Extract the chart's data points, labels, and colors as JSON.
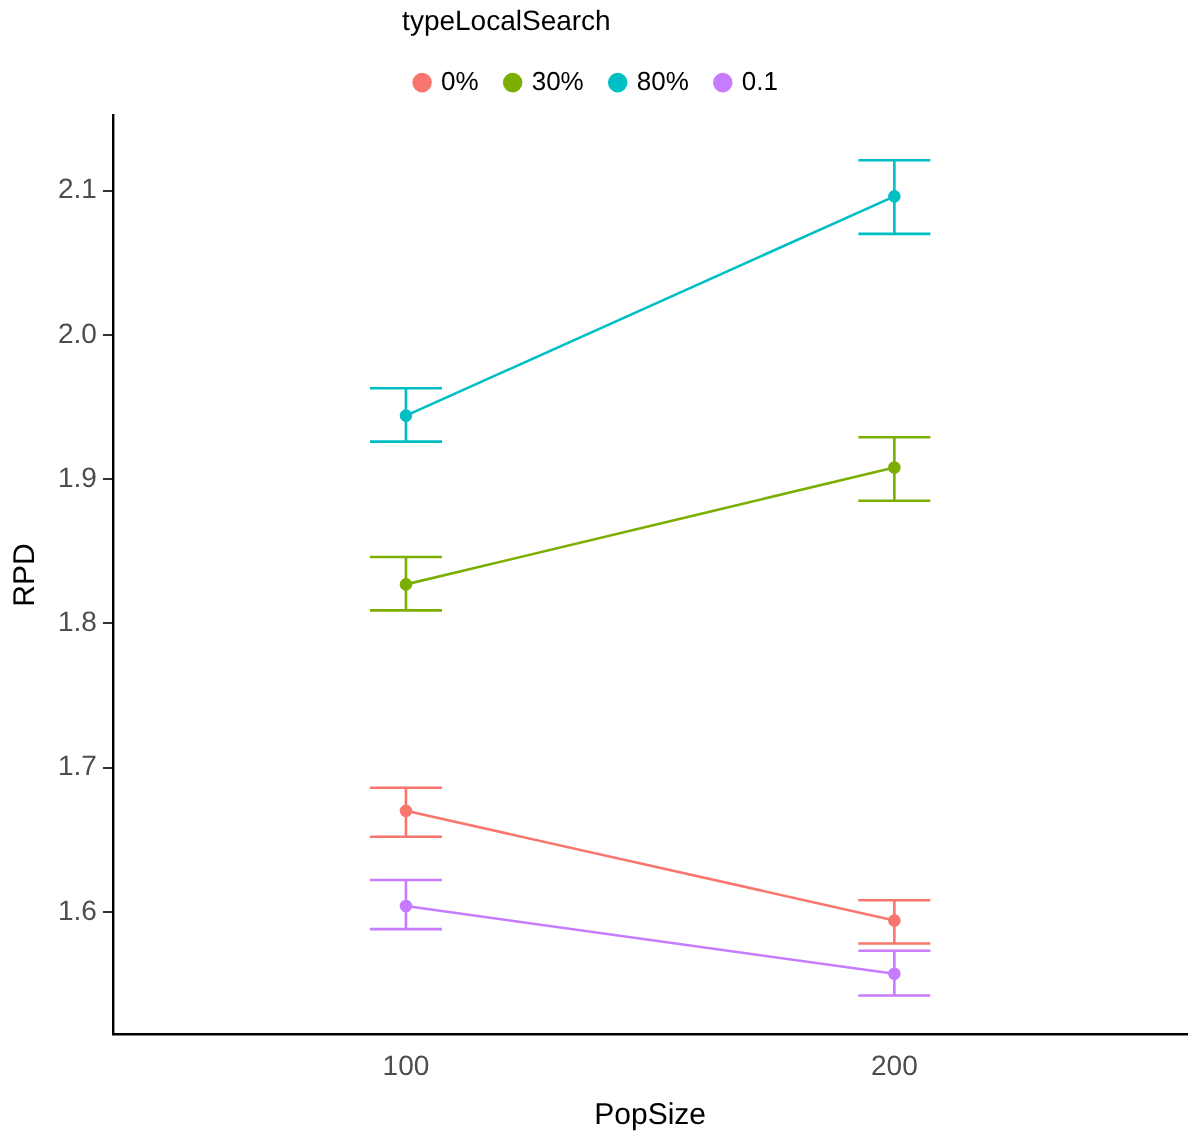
{
  "chart_data": {
    "type": "line",
    "xlabel": "PopSize",
    "ylabel": "RPD",
    "legend_title": "typeLocalSearch",
    "categories": [
      "100",
      "200"
    ],
    "series": [
      {
        "name": "0%",
        "color": "#f8766d",
        "values": [
          1.67,
          1.594
        ],
        "errors": [
          [
            1.652,
            1.686
          ],
          [
            1.578,
            1.608
          ]
        ]
      },
      {
        "name": "30%",
        "color": "#7cae00",
        "values": [
          1.827,
          1.908
        ],
        "errors": [
          [
            1.809,
            1.846
          ],
          [
            1.885,
            1.929
          ]
        ]
      },
      {
        "name": "80%",
        "color": "#00bfc4",
        "values": [
          1.944,
          2.096
        ],
        "errors": [
          [
            1.926,
            1.963
          ],
          [
            2.07,
            2.121
          ]
        ]
      },
      {
        "name": "0.1",
        "color": "#c77cff",
        "values": [
          1.604,
          1.557
        ],
        "errors": [
          [
            1.588,
            1.622
          ],
          [
            1.542,
            1.573
          ]
        ]
      }
    ],
    "ylim": [
      1.515,
      2.152
    ],
    "yticks": [
      1.6,
      1.7,
      1.8,
      1.9,
      {
        "value": 2,
        "label": "2.0"
      },
      2.1
    ],
    "legend": "top",
    "marker": "circle",
    "line_style": "solid",
    "grid": false
  }
}
